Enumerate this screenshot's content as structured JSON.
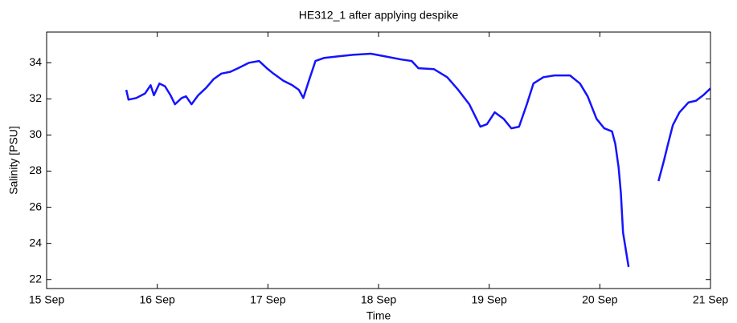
{
  "chart_data": {
    "type": "line",
    "title": "HE312_1 after applying despike",
    "xlabel": "Time",
    "ylabel": "Salinity [PSU]",
    "x": [
      15.72,
      15.74,
      15.81,
      15.89,
      15.94,
      15.97,
      16.02,
      16.07,
      16.12,
      16.16,
      16.22,
      16.26,
      16.31,
      16.37,
      16.44,
      16.51,
      16.58,
      16.66,
      16.73,
      16.83,
      16.92,
      16.99,
      17.05,
      17.14,
      17.22,
      17.28,
      17.32,
      17.37,
      17.43,
      17.51,
      17.63,
      17.77,
      17.93,
      18.06,
      18.21,
      18.3,
      18.36,
      18.5,
      18.62,
      18.72,
      18.82,
      18.92,
      18.98,
      19.05,
      19.13,
      19.2,
      19.27,
      19.34,
      19.4,
      19.49,
      19.59,
      19.73,
      19.82,
      19.89,
      19.97,
      20.04,
      20.11,
      20.14,
      20.17,
      20.19,
      20.21,
      20.26,
      20.4,
      20.53,
      20.58,
      20.62,
      20.66,
      20.72,
      20.8,
      20.87,
      20.94,
      21.0
    ],
    "series": [
      {
        "name": "Salinity",
        "color": "#1414ff",
        "values": [
          32.5,
          31.96,
          32.05,
          32.3,
          32.76,
          32.2,
          32.85,
          32.7,
          32.2,
          31.7,
          32.05,
          32.14,
          31.7,
          32.2,
          32.6,
          33.1,
          33.4,
          33.5,
          33.7,
          34.0,
          34.1,
          33.7,
          33.4,
          33.0,
          32.76,
          32.5,
          32.05,
          33.0,
          34.1,
          34.27,
          34.35,
          34.44,
          34.5,
          34.35,
          34.18,
          34.1,
          33.7,
          33.65,
          33.2,
          32.5,
          31.7,
          30.46,
          30.6,
          31.26,
          30.9,
          30.37,
          30.46,
          31.7,
          32.85,
          33.2,
          33.3,
          33.3,
          32.85,
          32.14,
          30.9,
          30.37,
          30.2,
          29.5,
          28.2,
          26.8,
          24.6,
          22.7,
          null,
          27.45,
          28.6,
          29.6,
          30.55,
          31.26,
          31.8,
          31.9,
          32.23,
          32.58
        ]
      }
    ],
    "xlim": [
      15,
      21
    ],
    "xticks": [
      {
        "value": 15,
        "label": "15 Sep"
      },
      {
        "value": 16,
        "label": "16 Sep"
      },
      {
        "value": 17,
        "label": "17 Sep"
      },
      {
        "value": 18,
        "label": "18 Sep"
      },
      {
        "value": 19,
        "label": "19 Sep"
      },
      {
        "value": 20,
        "label": "20 Sep"
      },
      {
        "value": 21,
        "label": "21 Sep"
      }
    ],
    "ylim": [
      21.5,
      35.7
    ],
    "yticks": [
      22,
      24,
      26,
      28,
      30,
      32,
      34
    ],
    "grid": false
  }
}
